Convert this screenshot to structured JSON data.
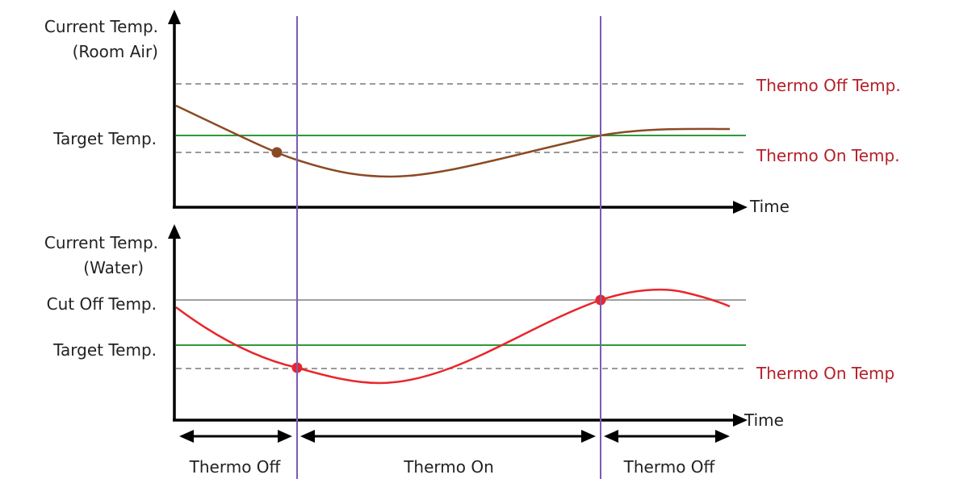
{
  "top_chart": {
    "ylabel_line1": "Current Temp.",
    "ylabel_line2": "(Room Air)",
    "xlabel": "Time",
    "target_label": "Target Temp.",
    "thermo_off_temp_label": "Thermo Off Temp.",
    "thermo_on_temp_label": "Thermo On Temp."
  },
  "bottom_chart": {
    "ylabel_line1": "Current Temp.",
    "ylabel_line2": "(Water)",
    "xlabel": "Time",
    "cut_off_label": "Cut Off Temp.",
    "target_label": "Target Temp.",
    "thermo_on_temp_label": "Thermo On Temp"
  },
  "phases": [
    {
      "label": "Thermo Off"
    },
    {
      "label": "Thermo On"
    },
    {
      "label": "Thermo Off"
    }
  ],
  "colors": {
    "axis": "#000000",
    "phase_divider": "#7b5cb5",
    "target_line": "#2e9a3a",
    "dashed_threshold": "#9a9a9a",
    "cut_off_line": "#a0a0a0",
    "room_air_curve": "#8b4a24",
    "water_curve": "#e8262c",
    "threshold_text": "#b5202a"
  }
}
